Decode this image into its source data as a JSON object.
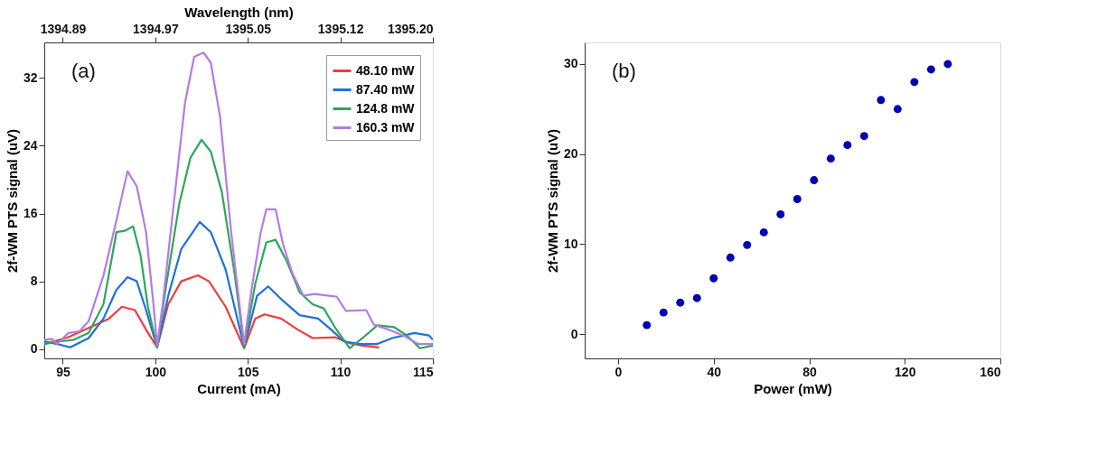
{
  "chart_data": [
    {
      "type": "line",
      "xlabel": "Current (mA)",
      "ylabel": "2f-WM PTS signal (uV)",
      "x2label": "Wavelength (nm)",
      "annotations": [
        "(a)"
      ],
      "legend": "top right",
      "grid": false,
      "line_style": "solid",
      "marker": "none",
      "xlim": [
        94,
        115
      ],
      "xticks": [
        95,
        100,
        105,
        110,
        115
      ],
      "ylim": [
        -1.1,
        36.2
      ],
      "yticks": [
        0,
        8,
        16,
        24,
        32
      ],
      "x2lim": [
        1394.8745,
        1395.2
      ],
      "x2ticks": [
        1394.89,
        {
          "value": 1394.9675,
          "label": "1394.97"
        },
        {
          "value": 1395.045,
          "label": "1395.05"
        },
        {
          "value": 1395.1225,
          "label": "1395.12"
        },
        {
          "value": 1395.2,
          "label": "1395.20"
        }
      ],
      "series": [
        {
          "name": "48.10 mW",
          "color": "#f03c3c",
          "x": [
            94.0,
            95.3,
            96.7,
            97.5,
            98.2,
            98.9,
            99.5,
            100.1,
            100.7,
            101.4,
            102.3,
            102.9,
            103.8,
            104.8,
            105.4,
            105.9,
            106.8,
            107.7,
            108.5,
            109.7,
            110.5,
            111.2,
            112.1
          ],
          "values": [
            0.6,
            1.4,
            2.8,
            3.6,
            5.0,
            4.6,
            2.3,
            0.2,
            5.3,
            8.0,
            8.7,
            8.0,
            5.0,
            0.1,
            3.6,
            4.1,
            3.6,
            2.3,
            1.3,
            1.4,
            0.7,
            0.4,
            0.2
          ]
        },
        {
          "name": "87.40 mW",
          "color": "#1f6fe0",
          "x": [
            94.0,
            94.7,
            95.4,
            96.4,
            97.2,
            97.9,
            98.5,
            99.0,
            99.5,
            100.1,
            100.7,
            101.4,
            102.4,
            103.0,
            103.8,
            104.8,
            105.5,
            106.1,
            106.9,
            107.8,
            108.8,
            109.5,
            110.2,
            111.1,
            112.0,
            112.8,
            114.0,
            114.8,
            115.0
          ],
          "values": [
            0.9,
            0.6,
            0.2,
            1.3,
            3.6,
            7.0,
            8.5,
            8.0,
            4.6,
            0.2,
            6.3,
            11.8,
            15.0,
            13.8,
            9.4,
            0.2,
            6.3,
            7.4,
            5.7,
            4.0,
            3.6,
            2.3,
            0.9,
            0.6,
            0.6,
            1.3,
            1.9,
            1.6,
            1.1
          ]
        },
        {
          "name": "124.8 mW",
          "color": "#2ea65a",
          "x": [
            94.0,
            94.8,
            95.6,
            96.4,
            97.2,
            97.9,
            98.4,
            98.8,
            99.2,
            99.6,
            100.1,
            100.6,
            101.3,
            101.9,
            102.5,
            103.0,
            103.6,
            104.3,
            104.8,
            105.4,
            106.0,
            106.5,
            107.1,
            107.8,
            108.5,
            109.1,
            109.7,
            110.5,
            111.2,
            112.0,
            112.9,
            113.6,
            114.3,
            115.0
          ],
          "values": [
            0.6,
            0.9,
            1.1,
            1.9,
            5.3,
            13.8,
            14.0,
            14.5,
            11.1,
            5.0,
            0.2,
            7.7,
            17.2,
            22.6,
            24.7,
            23.3,
            18.5,
            8.7,
            0.2,
            7.7,
            12.6,
            12.9,
            10.4,
            6.7,
            5.3,
            4.8,
            2.6,
            0.1,
            1.3,
            2.8,
            2.6,
            1.6,
            0.1,
            0.4
          ]
        },
        {
          "name": "160.3 mW",
          "color": "#b57be6",
          "x": [
            94.0,
            94.4,
            94.7,
            95.3,
            95.9,
            96.4,
            97.2,
            97.9,
            98.5,
            99.0,
            99.5,
            99.9,
            100.1,
            100.4,
            101.0,
            101.6,
            102.1,
            102.6,
            103.0,
            103.5,
            104.1,
            104.6,
            104.8,
            105.2,
            105.7,
            106.0,
            106.5,
            106.9,
            107.4,
            108.0,
            108.6,
            109.4,
            109.8,
            110.3,
            111.4,
            111.8,
            112.6,
            113.4,
            114.2,
            115.0
          ],
          "values": [
            1.1,
            1.2,
            0.6,
            1.9,
            2.1,
            3.3,
            8.7,
            15.2,
            21.0,
            19.2,
            13.8,
            5.3,
            0.4,
            5.3,
            17.2,
            29.0,
            34.5,
            35.0,
            33.8,
            27.4,
            13.8,
            4.3,
            0.6,
            7.0,
            13.8,
            16.5,
            16.5,
            12.4,
            9.0,
            6.3,
            6.5,
            6.3,
            6.2,
            4.5,
            4.6,
            2.9,
            2.3,
            1.6,
            0.6,
            0.6
          ]
        }
      ]
    },
    {
      "type": "scatter",
      "xlabel": "Power (mW)",
      "ylabel": "2f-WM PTS signal (uV)",
      "annotations": [
        "(b)"
      ],
      "legend": false,
      "grid": false,
      "marker": "circle",
      "xlim": [
        -14,
        160
      ],
      "xticks": [
        0,
        40,
        80,
        120,
        160
      ],
      "ylim": [
        -2.7,
        32.4
      ],
      "yticks": [
        0,
        10,
        20,
        30
      ],
      "series": [
        {
          "color": "#0000b4",
          "x": [
            12,
            19,
            26,
            33,
            40,
            47,
            54,
            61,
            68,
            75,
            82,
            89,
            96,
            103,
            110,
            117,
            124,
            131,
            138
          ],
          "values": [
            1,
            2.4,
            3.5,
            4,
            6.2,
            8.5,
            9.9,
            11.3,
            13.3,
            15,
            17.1,
            19.5,
            21,
            22,
            26,
            25,
            28,
            29.4,
            30
          ]
        }
      ]
    }
  ]
}
